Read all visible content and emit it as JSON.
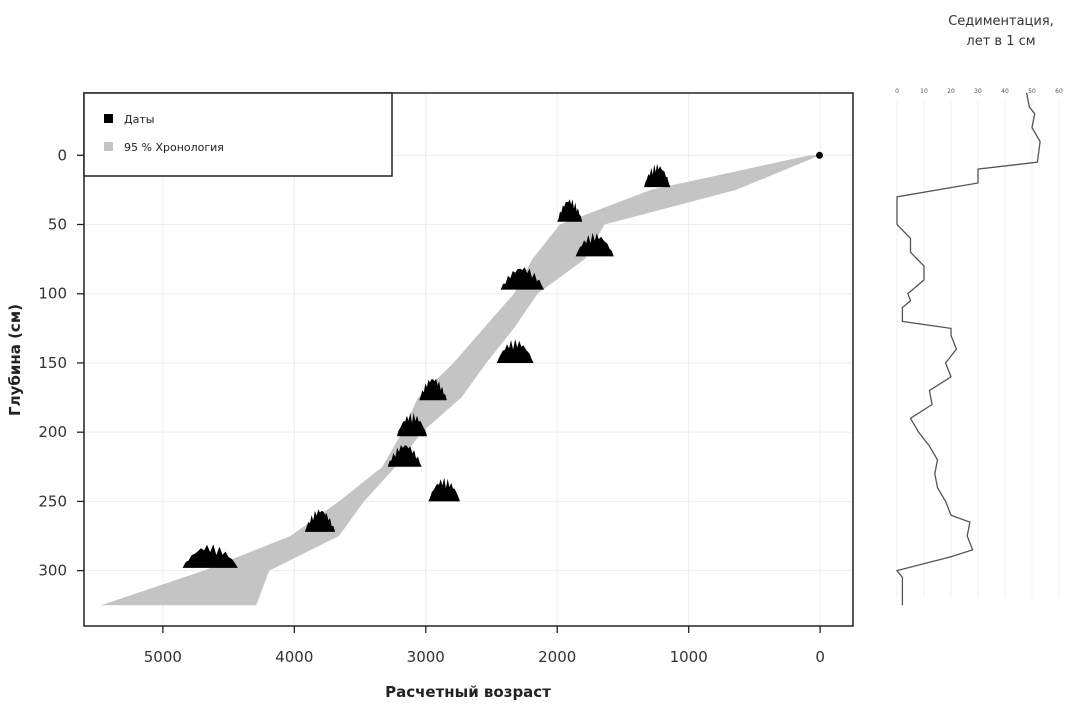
{
  "chart_data": [
    {
      "type": "area",
      "title": "",
      "xlabel": "Расчетный возраст",
      "ylabel": "Глубина (см)",
      "xlim": [
        5600,
        -250
      ],
      "ylim": [
        340,
        -45
      ],
      "x_ticks": [
        5000,
        4000,
        3000,
        2000,
        1000,
        0
      ],
      "y_ticks": [
        0,
        50,
        100,
        150,
        200,
        250,
        300
      ],
      "grid": true,
      "legend_position": "top-left",
      "legend": [
        {
          "label": "Даты",
          "color": "#000000"
        },
        {
          "label": "95 % Хронология",
          "color": "#c4c4c4"
        }
      ],
      "chronology_band": {
        "name": "95 % Хронология",
        "depth": [
          0,
          25,
          50,
          75,
          100,
          125,
          150,
          175,
          200,
          225,
          250,
          275,
          300,
          325
        ],
        "age_min": [
          0,
          640,
          1640,
          1790,
          2150,
          2330,
          2540,
          2730,
          3030,
          3230,
          3470,
          3660,
          4190,
          4290
        ],
        "age_max": [
          80,
          1290,
          1980,
          2190,
          2330,
          2560,
          2790,
          3060,
          3180,
          3330,
          3660,
          4030,
          4690,
          5470
        ]
      },
      "dates": [
        {
          "depth": 0,
          "age_from": 30,
          "age_to": -20
        },
        {
          "depth": 23,
          "age_from": 1340,
          "age_to": 1140
        },
        {
          "depth": 48,
          "age_from": 2000,
          "age_to": 1810
        },
        {
          "depth": 73,
          "age_from": 1860,
          "age_to": 1570
        },
        {
          "depth": 97,
          "age_from": 2430,
          "age_to": 2100
        },
        {
          "depth": 150,
          "age_from": 2460,
          "age_to": 2180
        },
        {
          "depth": 177,
          "age_from": 3050,
          "age_to": 2840
        },
        {
          "depth": 203,
          "age_from": 3220,
          "age_to": 2990
        },
        {
          "depth": 225,
          "age_from": 3290,
          "age_to": 3030
        },
        {
          "depth": 250,
          "age_from": 2980,
          "age_to": 2740
        },
        {
          "depth": 272,
          "age_from": 3920,
          "age_to": 3690
        },
        {
          "depth": 298,
          "age_from": 4850,
          "age_to": 4430
        }
      ]
    },
    {
      "type": "line",
      "title": "Седиментация,\nлет в 1 см",
      "xlabel": "",
      "ylabel": "",
      "xlim": [
        0,
        60
      ],
      "x_ticks": [
        0,
        10,
        20,
        30,
        40,
        50,
        60
      ],
      "grid": true,
      "series": [
        {
          "depth": [
            -45,
            -35,
            -30,
            -20,
            -10,
            5,
            10,
            20,
            30,
            45,
            50,
            60,
            70,
            80,
            90,
            100,
            105,
            110,
            120,
            125,
            130,
            140,
            150,
            160,
            170,
            180,
            190,
            200,
            210,
            220,
            230,
            240,
            250,
            260,
            265,
            275,
            285,
            290,
            300,
            305,
            315,
            325
          ],
          "value": [
            48,
            49,
            51,
            50,
            53,
            52,
            30,
            30,
            0,
            0,
            0,
            5,
            5,
            10,
            10,
            4,
            5,
            2,
            2,
            20,
            20,
            22,
            18,
            20,
            12,
            13,
            5,
            8,
            12,
            15,
            14,
            15,
            18,
            20,
            27,
            26,
            28,
            20,
            0,
            2,
            2,
            2
          ]
        }
      ]
    }
  ]
}
